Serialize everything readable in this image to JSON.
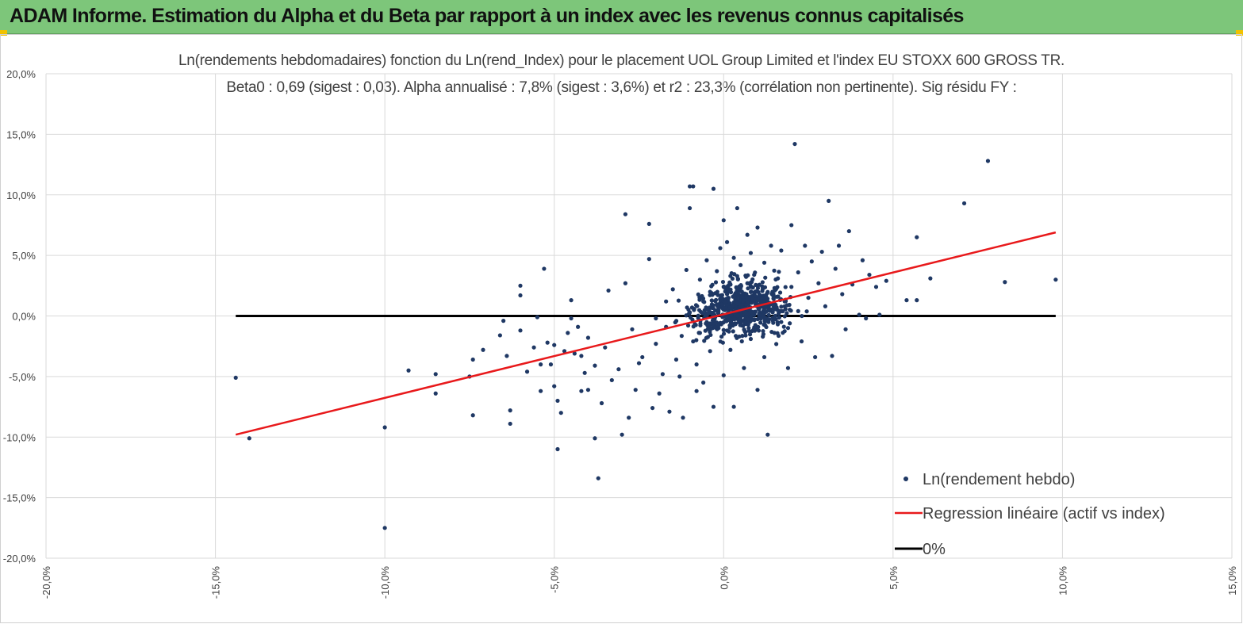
{
  "banner": {
    "title": "ADAM Informe. Estimation du Alpha et du Beta par rapport à un index avec les revenus connus capitalisés"
  },
  "colors": {
    "banner": "#7dc67a",
    "points": "#1f3864",
    "regression": "#e8191b",
    "zero_line": "#000000",
    "grid": "#d9d9d9"
  },
  "chart_data": {
    "type": "scatter",
    "title": "Ln(rendements hebdomadaires) fonction du Ln(rend_Index) pour le placement UOL Group Limited et l'index EU STOXX 600 GROSS TR.",
    "subtitle": "Beta0 : 0,69  (sigest : 0,03). Alpha annualisé : 7,8% (sigest : 3,6%) et r2 : 23,3% (corrélation non pertinente). Sig résidu FY :",
    "xlim": [
      -0.2,
      0.15
    ],
    "ylim": [
      -0.2,
      0.2
    ],
    "x_ticks": [
      "-20,0%",
      "-15,0%",
      "-10,0%",
      "-5,0%",
      "0,0%",
      "5,0%",
      "10,0%",
      "15,0%"
    ],
    "y_ticks": [
      "20,0%",
      "15,0%",
      "10,0%",
      "5,0%",
      "0,0%",
      "-5,0%",
      "-10,0%",
      "-15,0%",
      "-20,0%"
    ],
    "grid": true,
    "legend_position": "bottom-right",
    "legend": [
      "Ln(rendement hebdo)",
      "Regression linéaire (actif vs index)",
      "0%"
    ],
    "regression": {
      "x": [
        -0.144,
        0.098
      ],
      "y": [
        -0.098,
        0.069
      ]
    },
    "zero_line": {
      "x": [
        -0.144,
        0.098
      ],
      "y": [
        0,
        0
      ]
    },
    "scatter": {
      "name": "Ln(rendement hebdo)",
      "points": [
        [
          -0.144,
          -0.051
        ],
        [
          -0.14,
          -0.101
        ],
        [
          -0.1,
          -0.175
        ],
        [
          -0.1,
          -0.092
        ],
        [
          -0.093,
          -0.045
        ],
        [
          -0.085,
          -0.048
        ],
        [
          -0.085,
          -0.064
        ],
        [
          -0.075,
          -0.05
        ],
        [
          -0.074,
          -0.036
        ],
        [
          -0.074,
          -0.082
        ],
        [
          -0.071,
          -0.028
        ],
        [
          -0.066,
          -0.016
        ],
        [
          -0.065,
          -0.004
        ],
        [
          -0.064,
          -0.033
        ],
        [
          -0.063,
          -0.078
        ],
        [
          -0.063,
          -0.089
        ],
        [
          -0.06,
          0.025
        ],
        [
          -0.06,
          0.017
        ],
        [
          -0.06,
          -0.012
        ],
        [
          -0.058,
          -0.046
        ],
        [
          -0.056,
          -0.026
        ],
        [
          -0.055,
          -0.001
        ],
        [
          -0.054,
          -0.04
        ],
        [
          -0.054,
          -0.062
        ],
        [
          -0.053,
          0.039
        ],
        [
          -0.052,
          -0.022
        ],
        [
          -0.051,
          -0.04
        ],
        [
          -0.05,
          -0.058
        ],
        [
          -0.05,
          -0.024
        ],
        [
          -0.049,
          -0.07
        ],
        [
          -0.049,
          -0.11
        ],
        [
          -0.048,
          -0.08
        ],
        [
          -0.047,
          -0.029
        ],
        [
          -0.046,
          -0.014
        ],
        [
          -0.045,
          0.013
        ],
        [
          -0.045,
          -0.002
        ],
        [
          -0.044,
          -0.031
        ],
        [
          -0.043,
          -0.009
        ],
        [
          -0.042,
          -0.062
        ],
        [
          -0.042,
          -0.033
        ],
        [
          -0.041,
          -0.047
        ],
        [
          -0.04,
          -0.061
        ],
        [
          -0.04,
          -0.018
        ],
        [
          -0.038,
          -0.041
        ],
        [
          -0.038,
          -0.101
        ],
        [
          -0.037,
          -0.134
        ],
        [
          -0.036,
          -0.072
        ],
        [
          -0.035,
          -0.026
        ],
        [
          -0.034,
          0.021
        ],
        [
          -0.033,
          -0.053
        ],
        [
          -0.031,
          -0.044
        ],
        [
          -0.03,
          -0.098
        ],
        [
          -0.029,
          0.084
        ],
        [
          -0.029,
          0.027
        ],
        [
          -0.028,
          -0.084
        ],
        [
          -0.027,
          -0.011
        ],
        [
          -0.026,
          -0.061
        ],
        [
          -0.025,
          -0.039
        ],
        [
          -0.024,
          -0.034
        ],
        [
          -0.022,
          0.076
        ],
        [
          -0.022,
          0.047
        ],
        [
          -0.021,
          -0.076
        ],
        [
          -0.02,
          -0.002
        ],
        [
          -0.02,
          -0.023
        ],
        [
          -0.019,
          -0.064
        ],
        [
          -0.018,
          -0.048
        ],
        [
          -0.017,
          0.012
        ],
        [
          -0.017,
          -0.009
        ],
        [
          -0.016,
          -0.079
        ],
        [
          -0.015,
          0.022
        ],
        [
          -0.014,
          -0.036
        ],
        [
          -0.013,
          -0.05
        ],
        [
          -0.012,
          -0.084
        ],
        [
          -0.011,
          0.038
        ],
        [
          -0.01,
          0.107
        ],
        [
          -0.01,
          0.089
        ],
        [
          -0.01,
          0.003
        ],
        [
          -0.009,
          -0.021
        ],
        [
          -0.009,
          0.107
        ],
        [
          -0.008,
          -0.062
        ],
        [
          -0.008,
          -0.04
        ],
        [
          -0.007,
          0.03
        ],
        [
          -0.007,
          -0.014
        ],
        [
          -0.006,
          0.012
        ],
        [
          -0.006,
          -0.055
        ],
        [
          -0.005,
          0.046
        ],
        [
          -0.005,
          0.0
        ],
        [
          -0.004,
          -0.029
        ],
        [
          -0.004,
          0.02
        ],
        [
          -0.003,
          0.105
        ],
        [
          -0.003,
          -0.075
        ],
        [
          -0.002,
          0.037
        ],
        [
          -0.002,
          -0.009
        ],
        [
          -0.001,
          0.056
        ],
        [
          -0.001,
          0.008
        ],
        [
          0.0,
          -0.049
        ],
        [
          0.0,
          0.079
        ],
        [
          0.0,
          0.024
        ],
        [
          0.001,
          -0.012
        ],
        [
          0.001,
          0.061
        ],
        [
          0.001,
          0.006
        ],
        [
          0.002,
          0.033
        ],
        [
          0.002,
          -0.028
        ],
        [
          0.003,
          0.048
        ],
        [
          0.003,
          -0.075
        ],
        [
          0.004,
          0.017
        ],
        [
          0.004,
          0.089
        ],
        [
          0.005,
          -0.003
        ],
        [
          0.005,
          0.042
        ],
        [
          0.006,
          -0.043
        ],
        [
          0.006,
          0.011
        ],
        [
          0.007,
          0.067
        ],
        [
          0.007,
          0.027
        ],
        [
          0.008,
          -0.019
        ],
        [
          0.008,
          0.052
        ],
        [
          0.009,
          0.002
        ],
        [
          0.009,
          0.034
        ],
        [
          0.01,
          -0.061
        ],
        [
          0.01,
          0.073
        ],
        [
          0.011,
          0.016
        ],
        [
          0.012,
          -0.034
        ],
        [
          0.012,
          0.044
        ],
        [
          0.013,
          -0.098
        ],
        [
          0.013,
          0.007
        ],
        [
          0.014,
          0.058
        ],
        [
          0.015,
          0.023
        ],
        [
          0.015,
          -0.014
        ],
        [
          0.016,
          0.031
        ],
        [
          0.017,
          0.054
        ],
        [
          0.017,
          -0.005
        ],
        [
          0.018,
          0.012
        ],
        [
          0.019,
          -0.043
        ],
        [
          0.02,
          0.024
        ],
        [
          0.02,
          0.075
        ],
        [
          0.021,
          0.142
        ],
        [
          0.022,
          0.004
        ],
        [
          0.022,
          0.036
        ],
        [
          0.023,
          -0.021
        ],
        [
          0.024,
          0.058
        ],
        [
          0.025,
          0.015
        ],
        [
          0.026,
          0.045
        ],
        [
          0.027,
          -0.034
        ],
        [
          0.028,
          0.027
        ],
        [
          0.029,
          0.053
        ],
        [
          0.03,
          0.008
        ],
        [
          0.031,
          0.095
        ],
        [
          0.032,
          -0.033
        ],
        [
          0.033,
          0.039
        ],
        [
          0.034,
          0.058
        ],
        [
          0.035,
          0.018
        ],
        [
          0.036,
          -0.011
        ],
        [
          0.037,
          0.07
        ],
        [
          0.038,
          0.026
        ],
        [
          0.04,
          0.001
        ],
        [
          0.041,
          0.046
        ],
        [
          0.042,
          -0.002
        ],
        [
          0.043,
          0.034
        ],
        [
          0.045,
          0.024
        ],
        [
          0.046,
          0.001
        ],
        [
          0.048,
          0.029
        ],
        [
          0.054,
          0.013
        ],
        [
          0.057,
          0.065
        ],
        [
          0.057,
          0.013
        ],
        [
          0.061,
          0.031
        ],
        [
          0.071,
          0.093
        ],
        [
          0.078,
          0.128
        ],
        [
          0.083,
          0.028
        ],
        [
          0.098,
          0.03
        ]
      ]
    }
  }
}
